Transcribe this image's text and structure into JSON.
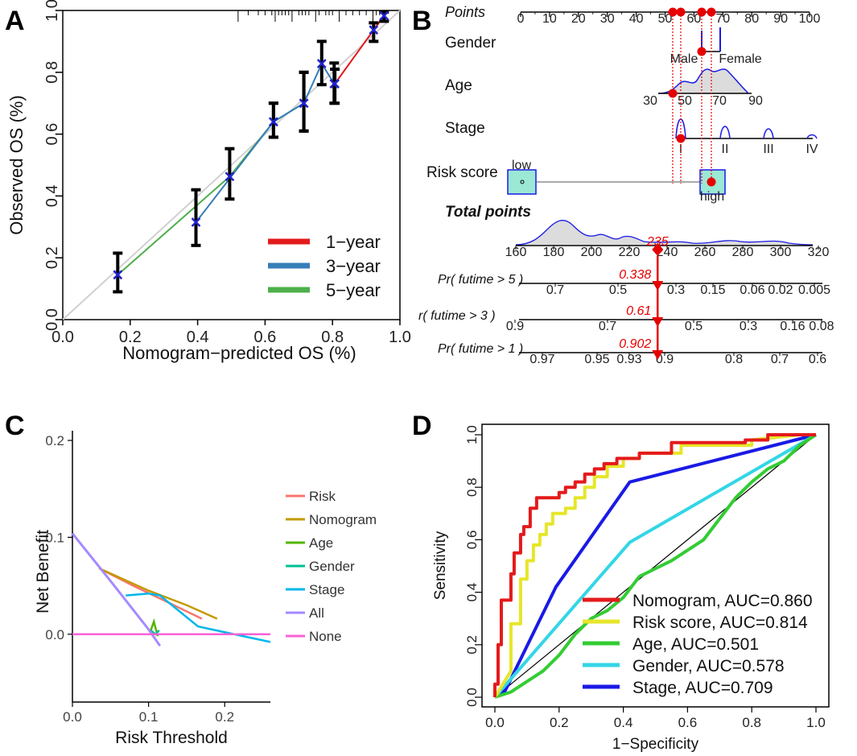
{
  "panels": {
    "A": "A",
    "B": "B",
    "C": "C",
    "D": "D"
  },
  "chart_data": [
    {
      "panel": "A",
      "type": "scatter",
      "title": "",
      "xlabel": "Nomogram−predicted OS (%)",
      "ylabel": "Observed OS (%)",
      "xlim": [
        0,
        1
      ],
      "ylim": [
        0,
        1
      ],
      "xticks": [
        "0.0",
        "0.2",
        "0.4",
        "0.6",
        "0.8",
        "1.0"
      ],
      "yticks": [
        "0.0",
        "0.2",
        "0.4",
        "0.6",
        "0.8",
        "1.0"
      ],
      "legend": [
        "1−year",
        "3−year",
        "5−year"
      ],
      "colors": {
        "1-year": "#e41a1c",
        "3-year": "#377eb8",
        "5-year": "#4daf4a",
        "diag": "#d0d0d0"
      },
      "series": [
        {
          "name": "1-year",
          "color": "#e41a1c",
          "points": [
            {
              "x": 0.807,
              "y": 0.763,
              "lo": 0.7,
              "hi": 0.81
            },
            {
              "x": 0.922,
              "y": 0.937,
              "lo": 0.9,
              "hi": 0.96
            },
            {
              "x": 0.953,
              "y": 0.983,
              "lo": 0.965,
              "hi": 0.995
            }
          ]
        },
        {
          "name": "3-year",
          "color": "#377eb8",
          "points": [
            {
              "x": 0.395,
              "y": 0.315,
              "lo": 0.24,
              "hi": 0.42
            },
            {
              "x": 0.625,
              "y": 0.64,
              "lo": 0.59,
              "hi": 0.7
            },
            {
              "x": 0.715,
              "y": 0.7,
              "lo": 0.61,
              "hi": 0.8
            },
            {
              "x": 0.768,
              "y": 0.828,
              "lo": 0.76,
              "hi": 0.9
            },
            {
              "x": 0.805,
              "y": 0.763,
              "lo": 0.7,
              "hi": 0.83
            }
          ]
        },
        {
          "name": "5-year",
          "color": "#4daf4a",
          "points": [
            {
              "x": 0.163,
              "y": 0.145,
              "lo": 0.09,
              "hi": 0.215
            },
            {
              "x": 0.495,
              "y": 0.463,
              "lo": 0.39,
              "hi": 0.553
            },
            {
              "x": 0.625,
              "y": 0.64,
              "lo": 0.59,
              "hi": 0.7
            },
            {
              "x": 0.715,
              "y": 0.7,
              "lo": 0.61,
              "hi": 0.8
            }
          ]
        }
      ],
      "rug": [
        0.52,
        0.55,
        0.58,
        0.6,
        0.62,
        0.63,
        0.64,
        0.65,
        0.66,
        0.67,
        0.68,
        0.7,
        0.71,
        0.72,
        0.73,
        0.75,
        0.76,
        0.78,
        0.79,
        0.8,
        0.82,
        0.84,
        0.86,
        0.88,
        0.9,
        0.92,
        0.93,
        0.94,
        0.95
      ]
    },
    {
      "panel": "B",
      "type": "nomogram",
      "points_label": "Points",
      "points_ticks": [
        "0",
        "10",
        "20",
        "30",
        "40",
        "50",
        "60",
        "70",
        "80",
        "90",
        "100"
      ],
      "rows": [
        {
          "label": "Gender",
          "tick_labels": [
            "Male",
            "Female"
          ],
          "selected": "Male",
          "selected_points": 61
        },
        {
          "label": "Age",
          "tick_labels": [
            "30",
            "50",
            "70",
            "90"
          ],
          "selected_points": 53
        },
        {
          "label": "Stage",
          "tick_labels": [
            "I",
            "II",
            "III",
            "IV"
          ],
          "selected": "I",
          "selected_points": 55
        },
        {
          "label": "Risk score",
          "tick_labels": [
            "low",
            "high"
          ],
          "selected": "high",
          "selected_points": 66
        }
      ],
      "total_points_label": "Total points",
      "total_ticks": [
        "160",
        "180",
        "200",
        "220",
        "240",
        "260",
        "280",
        "300",
        "320"
      ],
      "total_value": "235",
      "probabilities": [
        {
          "label": "Pr( futime > 5 )",
          "value": "0.338",
          "ticks": [
            "0.7",
            "0.5",
            "0.3",
            "0.15",
            "0.06",
            "0.02",
            "0.005"
          ]
        },
        {
          "label": "r( futime > 3 )",
          "value": "0.61",
          "ticks": [
            "0.9",
            "0.7",
            "0.5",
            "0.3",
            "0.16",
            "0.08"
          ]
        },
        {
          "label": "Pr( futime > 1 )",
          "value": "0.902",
          "ticks": [
            "0.97",
            "0.95",
            "0.93",
            "0.9",
            "0.8",
            "0.7",
            "0.6"
          ]
        }
      ]
    },
    {
      "panel": "C",
      "type": "line",
      "title": "",
      "xlabel": "Risk Threshold",
      "ylabel": "Net Benefit",
      "xlim": [
        0,
        0.26
      ],
      "ylim": [
        -0.07,
        0.21
      ],
      "xticks": [
        "0.0",
        "0.1",
        "0.2"
      ],
      "yticks": [
        "0.0",
        "0.1",
        "0.2"
      ],
      "series": [
        {
          "name": "Risk",
          "color": "#f8766d",
          "x": [
            0.035,
            0.08,
            0.12,
            0.17
          ],
          "y": [
            0.068,
            0.05,
            0.035,
            0.016
          ]
        },
        {
          "name": "Nomogram",
          "color": "#c49a00",
          "x": [
            0.035,
            0.1,
            0.15,
            0.19
          ],
          "y": [
            0.068,
            0.045,
            0.03,
            0.016
          ]
        },
        {
          "name": "Age",
          "color": "#53b400",
          "x": [
            0.102,
            0.107,
            0.112
          ],
          "y": [
            0.002,
            0.013,
            -0.002
          ]
        },
        {
          "name": "Gender",
          "color": "#00c094",
          "x": [
            0.103,
            0.109,
            0.114
          ],
          "y": [
            0.004,
            0.0,
            0.004
          ]
        },
        {
          "name": "Stage",
          "color": "#00b6eb",
          "x": [
            0.07,
            0.1,
            0.115,
            0.165,
            0.26
          ],
          "y": [
            0.04,
            0.042,
            0.04,
            0.008,
            -0.008
          ]
        },
        {
          "name": "All",
          "color": "#a58aff",
          "x": [
            0.0,
            0.05,
            0.1,
            0.115
          ],
          "y": [
            0.104,
            0.055,
            0.005,
            -0.012
          ]
        },
        {
          "name": "None",
          "color": "#fb61d7",
          "x": [
            0.0,
            0.26
          ],
          "y": [
            0.0,
            0.0
          ]
        }
      ]
    },
    {
      "panel": "D",
      "type": "line",
      "title": "",
      "xlabel": "1−Specificity",
      "ylabel": "Sensitivity",
      "xlim": [
        0,
        1
      ],
      "ylim": [
        0,
        1
      ],
      "xticks": [
        "0.0",
        "0.2",
        "0.4",
        "0.6",
        "0.8",
        "1.0"
      ],
      "yticks": [
        "0.0",
        "0.2",
        "0.4",
        "0.6",
        "0.8",
        "1.0"
      ],
      "series": [
        {
          "name": "Nomogram",
          "label": "Nomogram, AUC=0.860",
          "color": "#e41a1c",
          "x": [
            0,
            0,
            0.01,
            0.01,
            0.02,
            0.02,
            0.05,
            0.05,
            0.06,
            0.06,
            0.08,
            0.08,
            0.09,
            0.09,
            0.11,
            0.11,
            0.13,
            0.13,
            0.2,
            0.2,
            0.22,
            0.22,
            0.25,
            0.25,
            0.28,
            0.28,
            0.31,
            0.31,
            0.34,
            0.34,
            0.38,
            0.38,
            0.45,
            0.45,
            0.55,
            0.55,
            0.78,
            0.78,
            0.85,
            0.85,
            1.0
          ],
          "y": [
            0,
            0.05,
            0.05,
            0.2,
            0.2,
            0.37,
            0.37,
            0.47,
            0.47,
            0.55,
            0.55,
            0.62,
            0.62,
            0.65,
            0.65,
            0.72,
            0.72,
            0.76,
            0.76,
            0.78,
            0.78,
            0.8,
            0.8,
            0.82,
            0.82,
            0.85,
            0.85,
            0.87,
            0.87,
            0.89,
            0.89,
            0.91,
            0.91,
            0.93,
            0.93,
            0.97,
            0.97,
            0.98,
            0.98,
            1.0,
            1.0
          ]
        },
        {
          "name": "Risk score",
          "label": "Risk score, AUC=0.814",
          "color": "#e6e62a",
          "x": [
            0,
            0.05,
            0.05,
            0.08,
            0.08,
            0.1,
            0.1,
            0.12,
            0.12,
            0.14,
            0.14,
            0.16,
            0.16,
            0.18,
            0.18,
            0.22,
            0.22,
            0.25,
            0.25,
            0.28,
            0.28,
            0.31,
            0.31,
            0.35,
            0.35,
            0.4,
            0.4,
            0.45,
            0.45,
            0.58,
            0.58,
            0.8,
            0.8,
            0.95,
            1.0
          ],
          "y": [
            0,
            0.1,
            0.28,
            0.28,
            0.45,
            0.45,
            0.52,
            0.52,
            0.58,
            0.58,
            0.62,
            0.62,
            0.66,
            0.66,
            0.7,
            0.7,
            0.72,
            0.72,
            0.76,
            0.76,
            0.8,
            0.8,
            0.84,
            0.84,
            0.88,
            0.88,
            0.91,
            0.91,
            0.93,
            0.93,
            0.96,
            0.96,
            0.98,
            1.0,
            1.0
          ]
        },
        {
          "name": "Age",
          "label": "Age, AUC=0.501",
          "color": "#33cc33",
          "x": [
            0,
            0.05,
            0.1,
            0.15,
            0.2,
            0.25,
            0.3,
            0.35,
            0.4,
            0.45,
            0.5,
            0.55,
            0.6,
            0.65,
            0.7,
            0.75,
            0.8,
            0.85,
            0.9,
            0.95,
            1.0
          ],
          "y": [
            0,
            0.02,
            0.06,
            0.1,
            0.16,
            0.24,
            0.3,
            0.33,
            0.38,
            0.46,
            0.49,
            0.52,
            0.56,
            0.6,
            0.68,
            0.76,
            0.82,
            0.87,
            0.9,
            0.96,
            1.0
          ]
        },
        {
          "name": "Gender",
          "label": "Gender, AUC=0.578",
          "color": "#33d6e6",
          "x": [
            0,
            0.42,
            1.0
          ],
          "y": [
            0,
            0.59,
            1.0
          ]
        },
        {
          "name": "Stage",
          "label": "Stage, AUC=0.709",
          "color": "#1a1ae6",
          "x": [
            0,
            0.03,
            0.19,
            0.42,
            1.0
          ],
          "y": [
            0,
            0.02,
            0.42,
            0.82,
            1.0
          ]
        }
      ]
    }
  ]
}
